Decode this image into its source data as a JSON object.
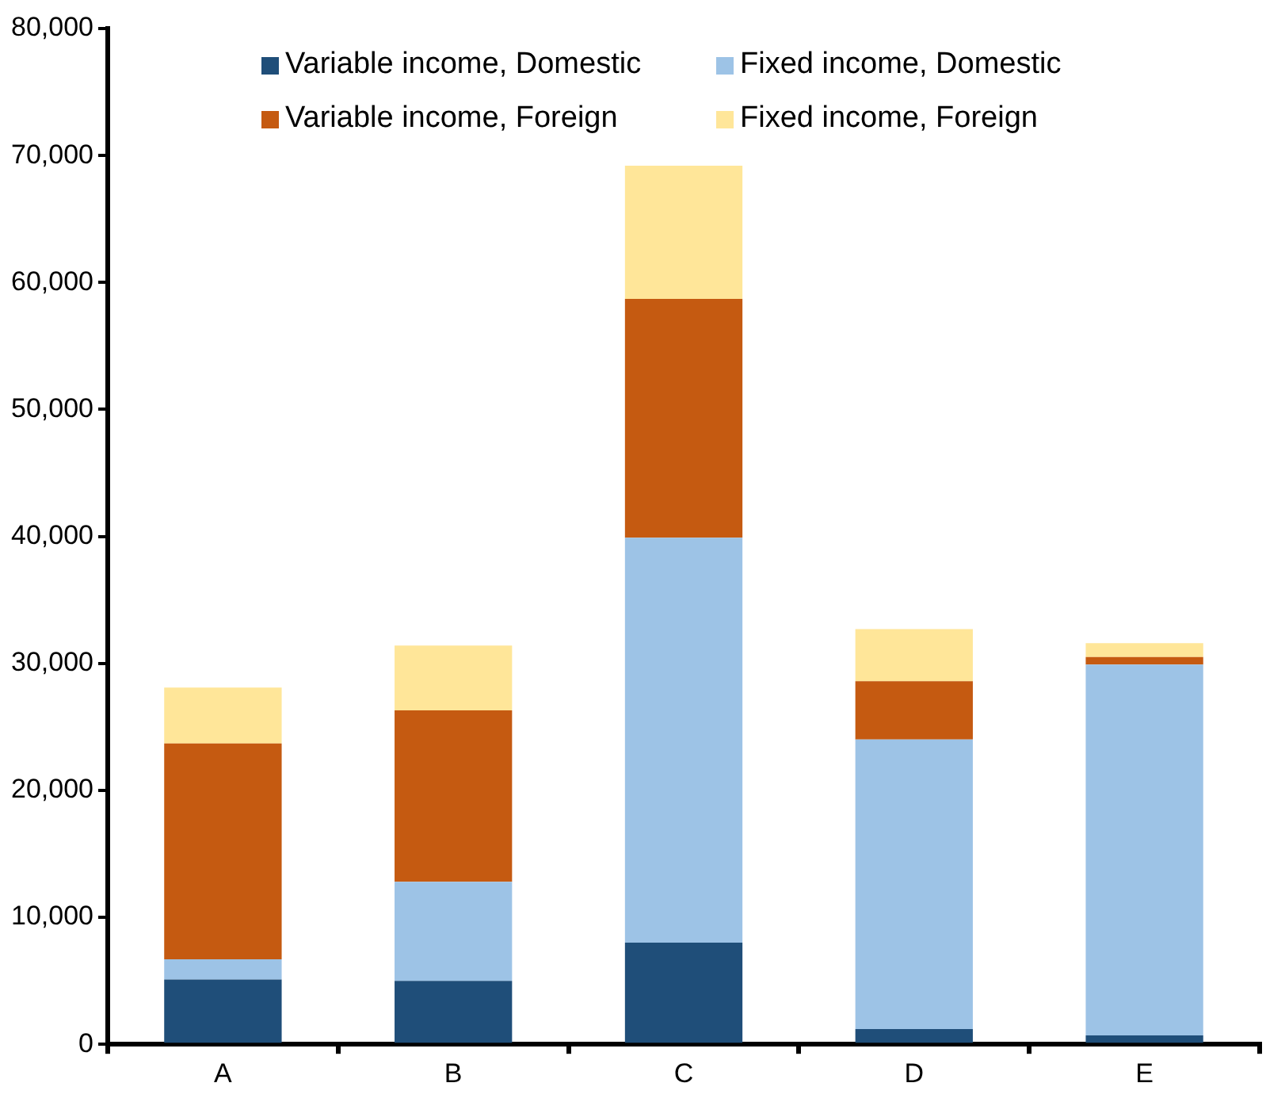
{
  "chart_data": {
    "type": "bar",
    "stacked": true,
    "categories": [
      "A",
      "B",
      "C",
      "D",
      "E"
    ],
    "series": [
      {
        "name": "Variable income, Domestic",
        "color": "#1f4e79",
        "values": [
          5100,
          5000,
          8000,
          1200,
          700
        ]
      },
      {
        "name": "Fixed income, Domestic",
        "color": "#9dc3e6",
        "values": [
          1600,
          7800,
          31900,
          22800,
          29200
        ]
      },
      {
        "name": "Variable income, Foreign",
        "color": "#c55a11",
        "values": [
          17000,
          13500,
          18800,
          4600,
          600
        ]
      },
      {
        "name": "Fixed income, Foreign",
        "color": "#ffe699",
        "values": [
          4400,
          5100,
          10500,
          4100,
          1100
        ]
      }
    ],
    "ylim": [
      0,
      80000
    ],
    "yticks": [
      0,
      {
        "value": 10000,
        "label": "10,000"
      },
      {
        "value": 20000,
        "label": "20,000"
      },
      {
        "value": 30000,
        "label": "30,000"
      },
      {
        "value": 40000,
        "label": "40,000"
      },
      {
        "value": 50000,
        "label": "50,000"
      },
      {
        "value": 60000,
        "label": "60,000"
      },
      {
        "value": 70000,
        "label": "70,000"
      },
      {
        "value": 80000,
        "label": "80,000"
      }
    ],
    "grid": false,
    "legend": "top"
  }
}
